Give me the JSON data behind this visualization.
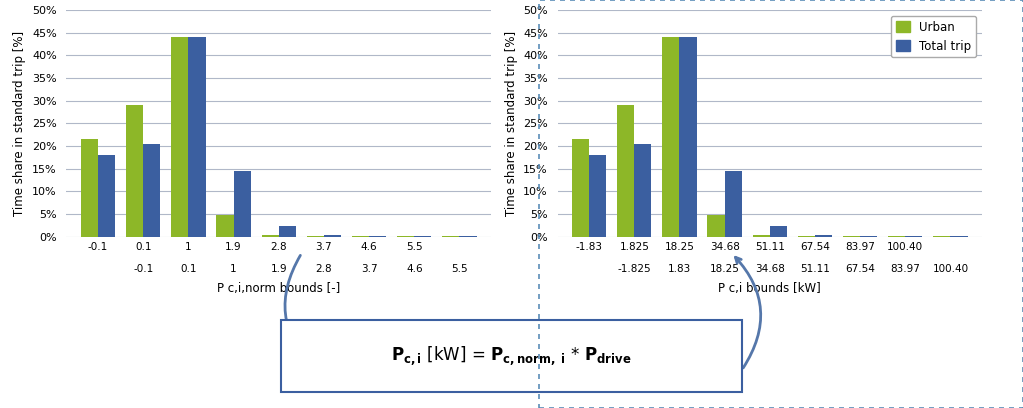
{
  "left_urban": [
    21.5,
    29.0,
    44.0,
    4.8,
    0.4,
    0.1,
    0.05,
    0.05,
    0.05
  ],
  "left_total": [
    18.0,
    20.5,
    44.0,
    14.5,
    2.3,
    0.4,
    0.1,
    0.1,
    0.05
  ],
  "left_top_labels": [
    "-0.1",
    "0.1",
    "1",
    "1.9",
    "2.8",
    "3.7",
    "4.6",
    "5.5",
    ""
  ],
  "left_bot_labels": [
    "",
    "-0.1",
    "0.1",
    "1",
    "1.9",
    "2.8",
    "3.7",
    "4.6",
    "5.5"
  ],
  "left_xlabel": "P c,i,norm bounds [-]",
  "right_urban": [
    21.5,
    29.0,
    44.0,
    4.8,
    0.4,
    0.1,
    0.05,
    0.05,
    0.05
  ],
  "right_total": [
    18.0,
    20.5,
    44.0,
    14.5,
    2.3,
    0.4,
    0.1,
    0.1,
    0.05
  ],
  "right_top_labels": [
    "-1.83",
    "1.825",
    "18.25",
    "34.68",
    "51.11",
    "67.54",
    "83.97",
    "100.40",
    ""
  ],
  "right_bot_labels": [
    "",
    "-1.825",
    "1.83",
    "18.25",
    "34.68",
    "51.11",
    "67.54",
    "83.97",
    "100.40"
  ],
  "right_xlabel": "P c,i bounds [kW]",
  "ylabel": "Time share in standard trip [%]",
  "yticks": [
    0,
    5,
    10,
    15,
    20,
    25,
    30,
    35,
    40,
    45,
    50
  ],
  "ylim": [
    0,
    50
  ],
  "color_urban": "#8db728",
  "color_total": "#3b5fa0",
  "bg_color": "#ffffff",
  "grid_color": "#b0b8c8",
  "legend_urban": "Urban",
  "legend_total": "Total trip",
  "border_color": "#3b5fa0",
  "outer_border_color": "#5b8db8"
}
